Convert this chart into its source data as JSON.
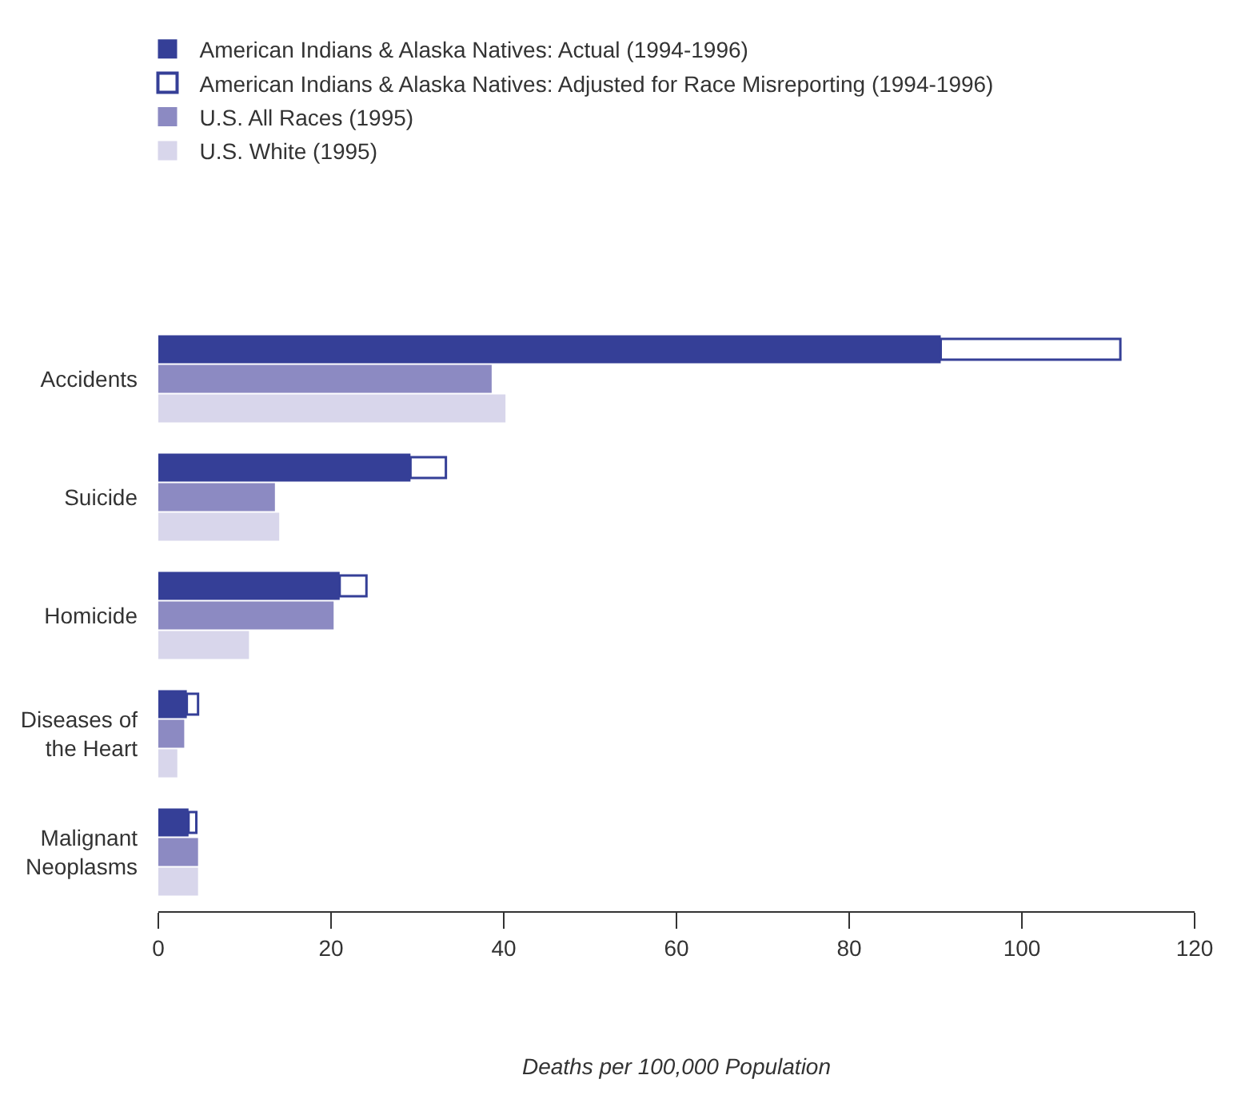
{
  "chart_data": {
    "type": "bar",
    "orientation": "horizontal",
    "xlabel": "Deaths per 100,000 Population",
    "categories": [
      "Accidents",
      "Suicide",
      "Homicide",
      "Diseases of the Heart",
      "Malignant Neoplasms"
    ],
    "series": [
      {
        "name": "American Indians & Alaska Natives: Actual (1994-1996)",
        "color": "#353f97",
        "values": [
          90.6,
          29.2,
          21.0,
          3.3,
          3.5
        ]
      },
      {
        "name": "American Indians & Alaska Natives: Adjusted for Race Misreporting (1994-1996)",
        "color": "#ffffff",
        "base": [
          90.6,
          29.2,
          21.0,
          3.3,
          3.5
        ],
        "values": [
          20.8,
          4.1,
          3.1,
          1.3,
          0.9
        ]
      },
      {
        "name": "U.S. All Races (1995)",
        "color": "#8c8ac2",
        "values": [
          38.6,
          13.5,
          20.3,
          3.0,
          4.6
        ]
      },
      {
        "name": "U.S. White (1995)",
        "color": "#d8d6eb",
        "values": [
          40.2,
          14.0,
          10.5,
          2.2,
          4.6
        ]
      }
    ],
    "xlim": [
      0,
      120
    ],
    "xticks": [
      0,
      20,
      40,
      60,
      80,
      100,
      120
    ],
    "legend": "top left"
  }
}
